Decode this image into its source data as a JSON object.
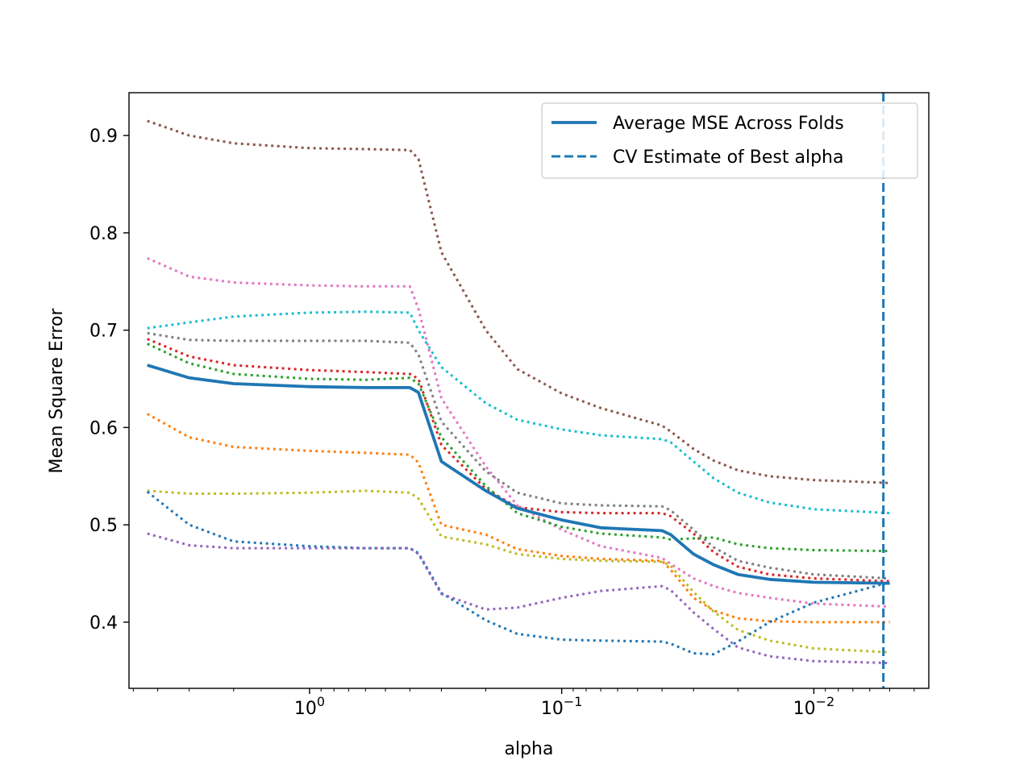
{
  "chart_data": {
    "type": "line",
    "title": "",
    "xlabel": "alpha",
    "ylabel": "Mean Square Error",
    "x_scale": "log",
    "x_reversed": true,
    "xlim": [
      5.2,
      0.0035
    ],
    "ylim": [
      0.332,
      0.944
    ],
    "grid": false,
    "legend_position": "top-right",
    "x_ticks": [
      {
        "value": 1,
        "base": "10",
        "exp": "0"
      },
      {
        "value": 0.1,
        "base": "10",
        "exp": "−1"
      },
      {
        "value": 0.01,
        "base": "10",
        "exp": "−2"
      }
    ],
    "y_ticks": [
      "0.4",
      "0.5",
      "0.6",
      "0.7",
      "0.8",
      "0.9"
    ],
    "x": [
      4.4,
      3.0,
      2.0,
      1.0,
      0.6,
      0.4,
      0.37,
      0.3,
      0.2,
      0.15,
      0.1,
      0.07,
      0.04,
      0.037,
      0.03,
      0.025,
      0.02,
      0.015,
      0.01,
      0.005
    ],
    "series": [
      {
        "name": "",
        "color": "#8c564b",
        "dash": "dotted",
        "values": [
          0.915,
          0.9,
          0.892,
          0.887,
          0.886,
          0.885,
          0.876,
          0.78,
          0.7,
          0.66,
          0.635,
          0.62,
          0.602,
          0.596,
          0.578,
          0.566,
          0.556,
          0.55,
          0.546,
          0.543
        ]
      },
      {
        "name": "",
        "color": "#e377c2",
        "dash": "dotted",
        "values": [
          0.774,
          0.755,
          0.749,
          0.746,
          0.745,
          0.745,
          0.722,
          0.63,
          0.56,
          0.52,
          0.495,
          0.478,
          0.466,
          0.46,
          0.445,
          0.437,
          0.43,
          0.425,
          0.419,
          0.416
        ]
      },
      {
        "name": "",
        "color": "#17becf",
        "dash": "dotted",
        "values": [
          0.702,
          0.708,
          0.714,
          0.718,
          0.719,
          0.718,
          0.7,
          0.662,
          0.625,
          0.608,
          0.598,
          0.592,
          0.588,
          0.585,
          0.565,
          0.548,
          0.533,
          0.523,
          0.516,
          0.512
        ]
      },
      {
        "name": "",
        "color": "#7f7f7f",
        "dash": "dotted",
        "values": [
          0.697,
          0.69,
          0.689,
          0.689,
          0.689,
          0.687,
          0.675,
          0.606,
          0.555,
          0.533,
          0.522,
          0.52,
          0.519,
          0.515,
          0.495,
          0.477,
          0.463,
          0.456,
          0.449,
          0.445
        ]
      },
      {
        "name": "",
        "color": "#d62728",
        "dash": "dotted",
        "values": [
          0.691,
          0.673,
          0.664,
          0.659,
          0.657,
          0.655,
          0.65,
          0.582,
          0.537,
          0.518,
          0.513,
          0.512,
          0.512,
          0.509,
          0.491,
          0.472,
          0.457,
          0.449,
          0.445,
          0.442
        ]
      },
      {
        "name": "",
        "color": "#2ca02c",
        "dash": "dotted",
        "values": [
          0.686,
          0.666,
          0.655,
          0.65,
          0.649,
          0.651,
          0.645,
          0.59,
          0.54,
          0.512,
          0.498,
          0.491,
          0.487,
          0.485,
          0.486,
          0.487,
          0.48,
          0.476,
          0.474,
          0.473
        ]
      },
      {
        "name": "",
        "color": "#ff7f0e",
        "dash": "dotted",
        "values": [
          0.614,
          0.59,
          0.58,
          0.576,
          0.574,
          0.572,
          0.564,
          0.5,
          0.49,
          0.475,
          0.468,
          0.465,
          0.463,
          0.454,
          0.425,
          0.412,
          0.404,
          0.401,
          0.4,
          0.4
        ]
      },
      {
        "name": "",
        "color": "#bcbd22",
        "dash": "dotted",
        "values": [
          0.535,
          0.532,
          0.532,
          0.533,
          0.535,
          0.533,
          0.527,
          0.488,
          0.48,
          0.47,
          0.465,
          0.463,
          0.462,
          0.458,
          0.431,
          0.411,
          0.392,
          0.381,
          0.373,
          0.369
        ]
      },
      {
        "name": "",
        "color": "#1f77b4",
        "dash": "dotted",
        "values": [
          0.534,
          0.5,
          0.483,
          0.478,
          0.476,
          0.476,
          0.471,
          0.43,
          0.402,
          0.388,
          0.382,
          0.381,
          0.38,
          0.378,
          0.368,
          0.367,
          0.38,
          0.4,
          0.42,
          0.441
        ]
      },
      {
        "name": "",
        "color": "#9467bd",
        "dash": "dotted",
        "values": [
          0.491,
          0.479,
          0.476,
          0.476,
          0.476,
          0.476,
          0.47,
          0.429,
          0.413,
          0.415,
          0.425,
          0.432,
          0.437,
          0.433,
          0.41,
          0.393,
          0.374,
          0.365,
          0.36,
          0.358
        ]
      },
      {
        "name": "Average MSE Across Folds",
        "color": "#1f77b4",
        "dash": "solid",
        "values": [
          0.664,
          0.651,
          0.645,
          0.642,
          0.641,
          0.641,
          0.636,
          0.565,
          0.535,
          0.517,
          0.505,
          0.497,
          0.494,
          0.49,
          0.47,
          0.459,
          0.449,
          0.444,
          0.441,
          0.44
        ]
      }
    ],
    "vlines": [
      {
        "name": "CV Estimate of Best alpha",
        "color": "#1f77b4",
        "dash": "dashed",
        "x": 0.0053
      }
    ],
    "legend": [
      {
        "label": "Average MSE Across Folds",
        "style": "solid",
        "color": "#1f77b4"
      },
      {
        "label": "CV Estimate of Best alpha",
        "style": "dashed",
        "color": "#1f77b4"
      }
    ]
  }
}
